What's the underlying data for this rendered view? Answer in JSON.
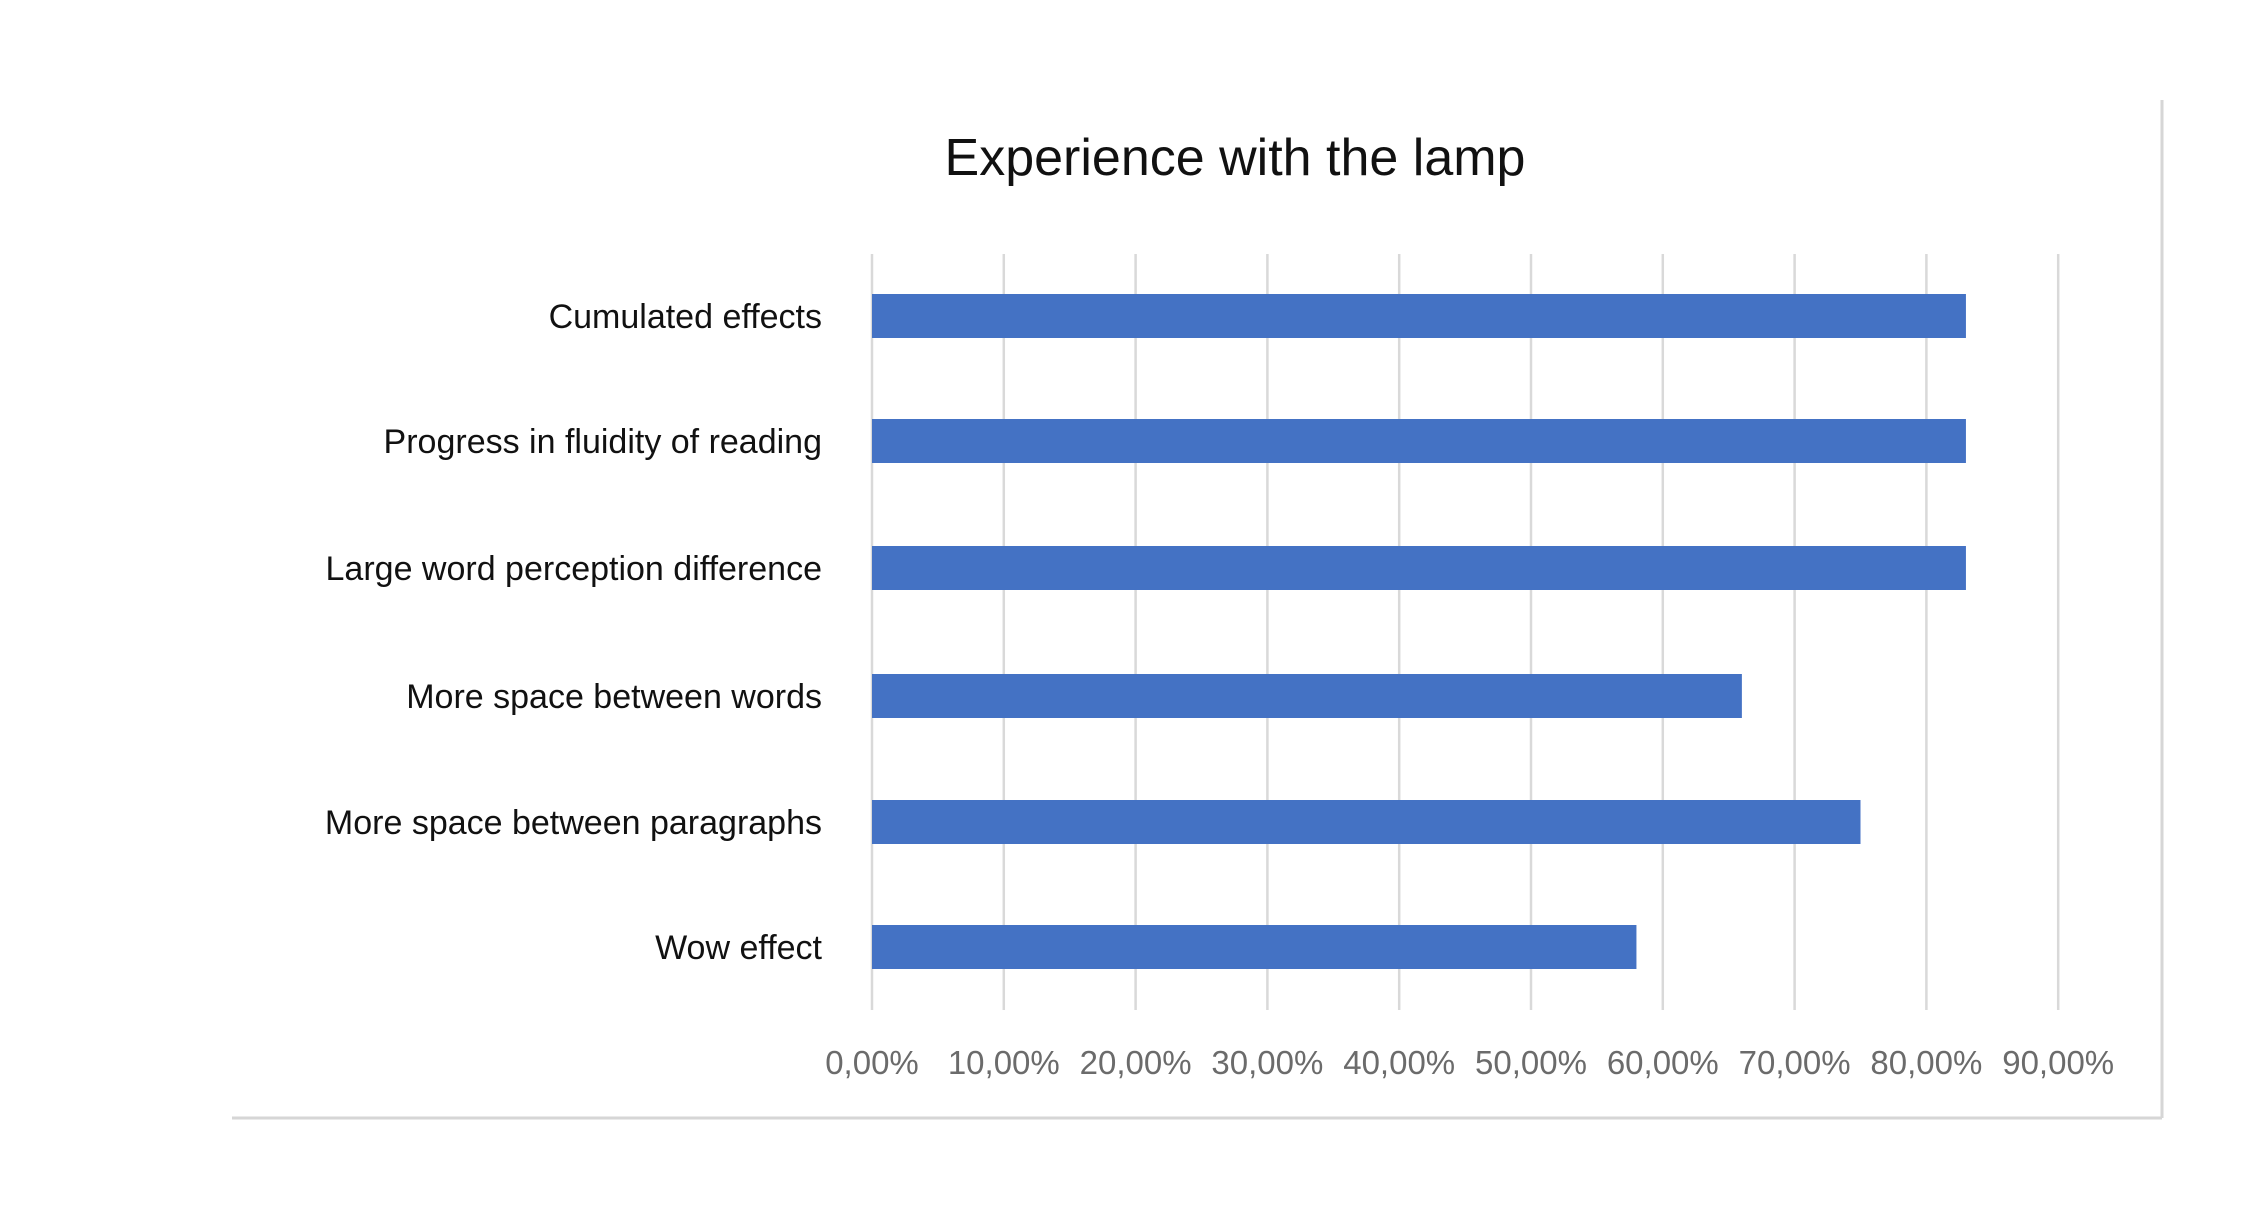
{
  "chart_data": {
    "type": "bar",
    "orientation": "horizontal",
    "title": "Experience with the lamp",
    "xlabel": "",
    "ylabel": "",
    "categories": [
      "Cumulated effects",
      "Progress in fluidity of reading",
      "Large word perception difference",
      "More space between words",
      "More space between paragraphs",
      "Wow effect"
    ],
    "values": [
      0.83,
      0.83,
      0.83,
      0.66,
      0.75,
      0.58
    ],
    "x_ticks": [
      "0,00%",
      "10,00%",
      "20,00%",
      "30,00%",
      "40,00%",
      "50,00%",
      "60,00%",
      "70,00%",
      "80,00%",
      "90,00%"
    ],
    "xlim": [
      0,
      0.9
    ],
    "grid": true,
    "legend": "none",
    "bar_color": "#4472C4"
  }
}
